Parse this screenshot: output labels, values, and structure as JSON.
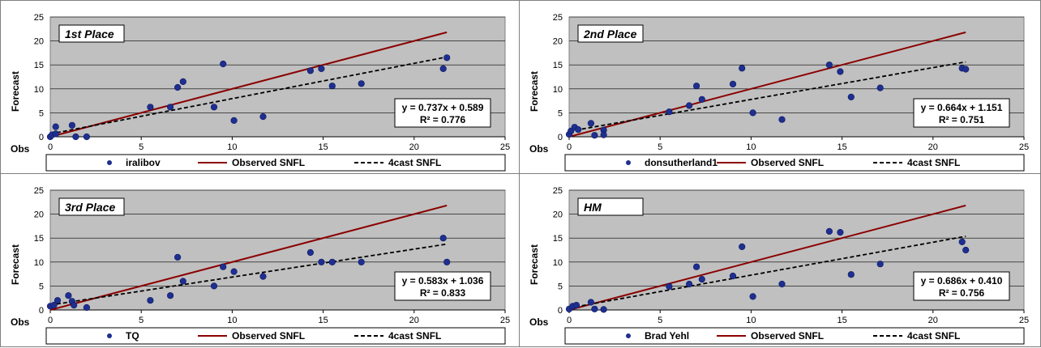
{
  "chart_data": [
    {
      "type": "scatter",
      "title": "1st Place",
      "xlabel": "Obs",
      "ylabel": "Forecast",
      "xlim": [
        0,
        25
      ],
      "ylim": [
        0,
        25
      ],
      "xticks": [
        "0",
        "5",
        "10",
        "15",
        "20",
        "25"
      ],
      "yticks": [
        "0",
        "5",
        "10",
        "15",
        "20",
        "25"
      ],
      "grid": true,
      "legend_position": "bottom",
      "series": [
        {
          "name": "iralibov",
          "kind": "scatter",
          "color": "#1f2f8f",
          "x": [
            0.0,
            0.1,
            0.3,
            0.3,
            1.2,
            1.4,
            2.0,
            5.5,
            6.6,
            7.0,
            7.3,
            9.0,
            9.5,
            10.1,
            11.7,
            14.3,
            14.9,
            15.5,
            17.1,
            21.6,
            21.8
          ],
          "y": [
            0.0,
            0.4,
            0.6,
            2.1,
            2.4,
            0.0,
            0.0,
            6.2,
            6.2,
            10.3,
            11.5,
            6.2,
            15.2,
            3.4,
            4.2,
            13.8,
            14.2,
            10.6,
            11.1,
            14.2,
            16.5
          ]
        },
        {
          "name": "Observed SNFL",
          "kind": "line",
          "color": "#8b0000",
          "x": [
            0,
            21.8
          ],
          "y": [
            0,
            21.8
          ]
        },
        {
          "name": "4cast SNFL",
          "kind": "dashed-line",
          "color": "#000000",
          "x": [
            0,
            21.8
          ],
          "y": [
            0.589,
            16.656
          ]
        }
      ],
      "annotation": {
        "equation": "y = 0.737x + 0.589",
        "r2": "R² = 0.776"
      }
    },
    {
      "type": "scatter",
      "title": "2nd Place",
      "xlabel": "Obs",
      "ylabel": "Forecast",
      "xlim": [
        0,
        25
      ],
      "ylim": [
        0,
        25
      ],
      "xticks": [
        "0",
        "5",
        "10",
        "15",
        "20",
        "25"
      ],
      "yticks": [
        "0",
        "5",
        "10",
        "15",
        "20",
        "25"
      ],
      "grid": true,
      "legend_position": "bottom",
      "series": [
        {
          "name": "donsutherland1",
          "kind": "scatter",
          "color": "#1f2f8f",
          "x": [
            0.0,
            0.1,
            0.3,
            0.5,
            1.2,
            1.4,
            1.9,
            1.9,
            5.5,
            6.6,
            7.0,
            7.3,
            9.0,
            9.5,
            10.1,
            11.7,
            14.3,
            14.9,
            15.5,
            17.1,
            21.6,
            21.8
          ],
          "y": [
            0.5,
            1.2,
            2.0,
            1.5,
            2.8,
            0.3,
            1.4,
            0.4,
            5.2,
            6.5,
            10.6,
            7.8,
            11.0,
            14.3,
            5.0,
            3.6,
            15.0,
            13.6,
            8.3,
            10.2,
            14.3,
            14.1
          ]
        },
        {
          "name": "Observed SNFL",
          "kind": "line",
          "color": "#8b0000",
          "x": [
            0,
            21.8
          ],
          "y": [
            0,
            21.8
          ]
        },
        {
          "name": "4cast SNFL",
          "kind": "dashed-line",
          "color": "#000000",
          "x": [
            0,
            21.8
          ],
          "y": [
            1.151,
            15.626
          ]
        }
      ],
      "annotation": {
        "equation": "y = 0.664x + 1.151",
        "r2": "R² = 0.751"
      }
    },
    {
      "type": "scatter",
      "title": "3rd Place",
      "xlabel": "Obs",
      "ylabel": "Forecast",
      "xlim": [
        0,
        25
      ],
      "ylim": [
        0,
        25
      ],
      "xticks": [
        "0",
        "5",
        "10",
        "15",
        "20",
        "25"
      ],
      "yticks": [
        "0",
        "5",
        "10",
        "15",
        "20",
        "25"
      ],
      "grid": true,
      "legend_position": "bottom",
      "series": [
        {
          "name": "TQ",
          "kind": "scatter",
          "color": "#1f2f8f",
          "x": [
            0.0,
            0.2,
            0.4,
            1.0,
            1.2,
            1.3,
            2.0,
            5.5,
            6.6,
            7.0,
            7.3,
            9.0,
            9.5,
            10.1,
            11.7,
            14.3,
            14.9,
            15.5,
            17.1,
            21.6,
            21.8
          ],
          "y": [
            0.8,
            1.0,
            2.0,
            3.0,
            1.8,
            1.0,
            0.5,
            2.0,
            3.0,
            11.0,
            6.0,
            5.0,
            9.0,
            8.0,
            7.0,
            12.0,
            10.0,
            10.0,
            10.0,
            15.0,
            10.0
          ]
        },
        {
          "name": "Observed SNFL",
          "kind": "line",
          "color": "#8b0000",
          "x": [
            0,
            21.8
          ],
          "y": [
            0,
            21.8
          ]
        },
        {
          "name": "4cast SNFL",
          "kind": "dashed-line",
          "color": "#000000",
          "x": [
            0,
            21.8
          ],
          "y": [
            1.036,
            13.745
          ]
        }
      ],
      "annotation": {
        "equation": "y = 0.583x + 1.036",
        "r2": "R² = 0.833"
      }
    },
    {
      "type": "scatter",
      "title": "HM",
      "xlabel": "Obs",
      "ylabel": "Forecast",
      "xlim": [
        0,
        25
      ],
      "ylim": [
        0,
        25
      ],
      "xticks": [
        "0",
        "5",
        "10",
        "15",
        "20",
        "25"
      ],
      "yticks": [
        "0",
        "5",
        "10",
        "15",
        "20",
        "25"
      ],
      "grid": true,
      "legend_position": "bottom",
      "series": [
        {
          "name": "Brad Yehl",
          "kind": "scatter",
          "color": "#1f2f8f",
          "x": [
            0.0,
            0.2,
            0.4,
            1.2,
            1.4,
            1.9,
            5.5,
            6.6,
            7.0,
            7.3,
            9.0,
            9.5,
            10.1,
            11.7,
            14.3,
            14.9,
            15.5,
            17.1,
            21.6,
            21.8
          ],
          "y": [
            0.2,
            0.8,
            1.0,
            1.6,
            0.2,
            0.1,
            4.9,
            5.4,
            9.0,
            6.4,
            7.1,
            13.2,
            2.8,
            5.4,
            16.4,
            16.2,
            7.4,
            9.6,
            14.2,
            12.5
          ]
        },
        {
          "name": "Observed SNFL",
          "kind": "line",
          "color": "#8b0000",
          "x": [
            0,
            21.8
          ],
          "y": [
            0,
            21.8
          ]
        },
        {
          "name": "4cast SNFL",
          "kind": "dashed-line",
          "color": "#000000",
          "x": [
            0,
            21.8
          ],
          "y": [
            0.41,
            15.365
          ]
        }
      ],
      "annotation": {
        "equation": "y = 0.686x + 0.410",
        "r2": "R² = 0.756"
      }
    }
  ]
}
